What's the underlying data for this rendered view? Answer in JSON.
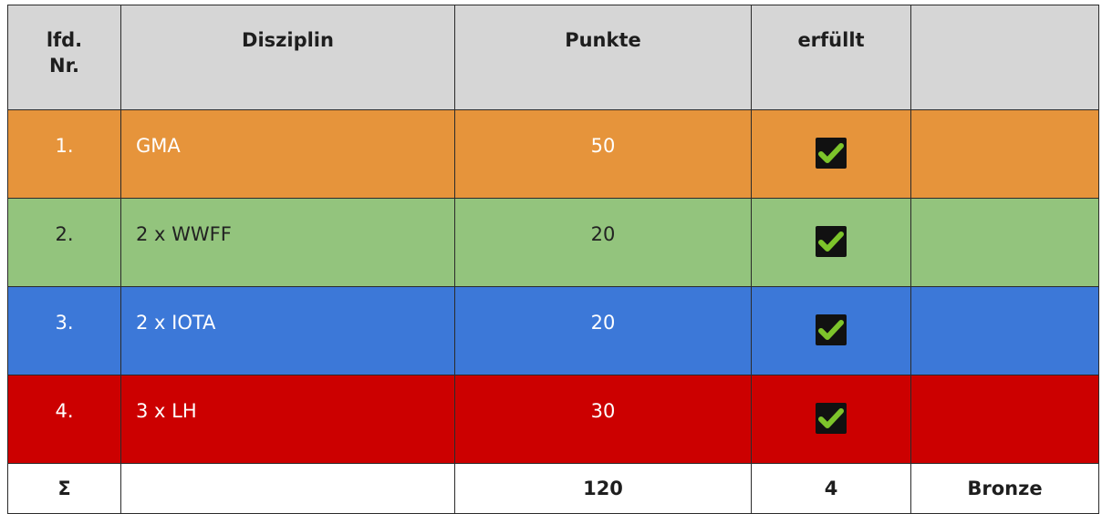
{
  "header": {
    "nr_label": "lfd. Nr.",
    "nr_line1": "lfd.",
    "nr_line2": "Nr.",
    "discipline": "Disziplin",
    "points": "Punkte",
    "fulfilled": "erfüllt",
    "extra": ""
  },
  "rows": [
    {
      "nr": "1.",
      "discipline": "GMA",
      "points": "50",
      "fulfilled_icon": "checkmark-icon",
      "color": "#e6943b"
    },
    {
      "nr": "2.",
      "discipline": "2 x WWFF",
      "points": "20",
      "fulfilled_icon": "checkmark-icon",
      "color": "#93c47d"
    },
    {
      "nr": "3.",
      "discipline": "2 x IOTA",
      "points": "20",
      "fulfilled_icon": "checkmark-icon",
      "color": "#3c78d8"
    },
    {
      "nr": "4.",
      "discipline": "3 x LH",
      "points": "30",
      "fulfilled_icon": "checkmark-icon",
      "color": "#cc0000"
    }
  ],
  "summary": {
    "symbol": "Σ",
    "discipline": "",
    "points": "120",
    "fulfilled": "4",
    "award": "Bronze"
  }
}
